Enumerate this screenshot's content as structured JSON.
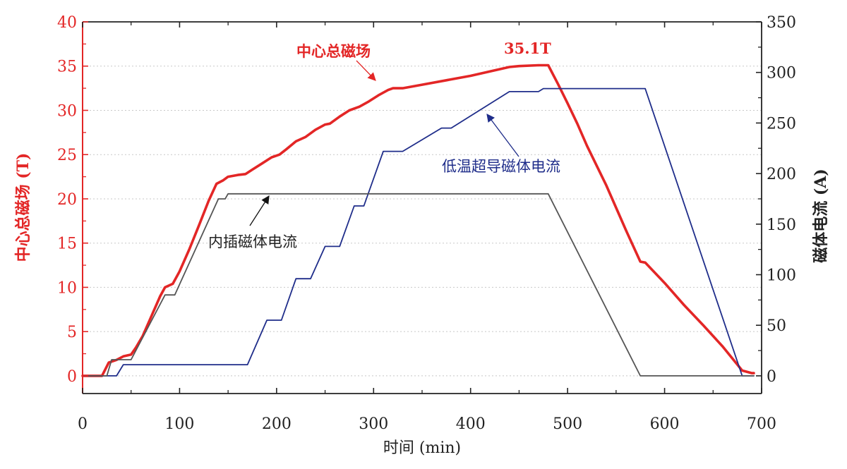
{
  "chart_data": {
    "type": "line",
    "x_axis": {
      "label": "时间 (min)",
      "range": [
        0,
        700
      ],
      "ticks": [
        0,
        100,
        200,
        300,
        400,
        500,
        600,
        700
      ]
    },
    "y_left": {
      "label": "中心总磁场 (T)",
      "range": [
        -2,
        40
      ],
      "ticks": [
        0,
        5,
        10,
        15,
        20,
        25,
        30,
        35,
        40
      ],
      "color": "#e32626"
    },
    "y_right": {
      "label": "磁体电流 (A)",
      "range": [
        -17.5,
        350
      ],
      "ticks": [
        0,
        50,
        100,
        150,
        200,
        250,
        300,
        350
      ],
      "color": "#222222"
    },
    "grid": "horizontal dotted",
    "series": [
      {
        "name": "中心总磁场",
        "axis": "left",
        "color": "#e32626",
        "points": [
          [
            0,
            0
          ],
          [
            20,
            0
          ],
          [
            27,
            1.5
          ],
          [
            35,
            1.8
          ],
          [
            42,
            2.2
          ],
          [
            50,
            2.4
          ],
          [
            55,
            3.2
          ],
          [
            62,
            4.5
          ],
          [
            70,
            6.5
          ],
          [
            80,
            9.0
          ],
          [
            85,
            10.0
          ],
          [
            93,
            10.4
          ],
          [
            100,
            11.8
          ],
          [
            110,
            14.3
          ],
          [
            120,
            17.0
          ],
          [
            130,
            19.8
          ],
          [
            138,
            21.7
          ],
          [
            145,
            22.1
          ],
          [
            150,
            22.5
          ],
          [
            160,
            22.7
          ],
          [
            168,
            22.8
          ],
          [
            175,
            23.3
          ],
          [
            185,
            24.0
          ],
          [
            195,
            24.7
          ],
          [
            203,
            25.0
          ],
          [
            210,
            25.6
          ],
          [
            220,
            26.5
          ],
          [
            230,
            27.0
          ],
          [
            240,
            27.8
          ],
          [
            250,
            28.4
          ],
          [
            255,
            28.5
          ],
          [
            265,
            29.3
          ],
          [
            275,
            30.0
          ],
          [
            285,
            30.4
          ],
          [
            295,
            31.0
          ],
          [
            305,
            31.7
          ],
          [
            315,
            32.3
          ],
          [
            320,
            32.5
          ],
          [
            330,
            32.5
          ],
          [
            350,
            32.9
          ],
          [
            375,
            33.4
          ],
          [
            400,
            33.9
          ],
          [
            420,
            34.4
          ],
          [
            440,
            34.9
          ],
          [
            450,
            35.0
          ],
          [
            470,
            35.1
          ],
          [
            480,
            35.1
          ],
          [
            490,
            33.0
          ],
          [
            500,
            30.8
          ],
          [
            510,
            28.5
          ],
          [
            520,
            26.0
          ],
          [
            540,
            21.5
          ],
          [
            560,
            16.5
          ],
          [
            575,
            12.9
          ],
          [
            580,
            12.8
          ],
          [
            600,
            10.5
          ],
          [
            620,
            8.0
          ],
          [
            640,
            5.7
          ],
          [
            660,
            3.3
          ],
          [
            680,
            0.6
          ],
          [
            690,
            0.3
          ],
          [
            692,
            0.3
          ]
        ]
      },
      {
        "name": "低温超导磁体电流",
        "axis": "right",
        "color": "#1f2d8a",
        "points": [
          [
            0,
            0
          ],
          [
            35,
            0
          ],
          [
            42,
            11
          ],
          [
            170,
            11
          ],
          [
            190,
            55
          ],
          [
            205,
            55
          ],
          [
            220,
            96
          ],
          [
            235,
            96
          ],
          [
            250,
            128
          ],
          [
            265,
            128
          ],
          [
            280,
            168
          ],
          [
            290,
            168
          ],
          [
            310,
            222
          ],
          [
            330,
            222
          ],
          [
            370,
            245
          ],
          [
            380,
            245
          ],
          [
            440,
            281
          ],
          [
            470,
            281
          ],
          [
            475,
            284
          ],
          [
            580,
            284
          ],
          [
            680,
            0
          ],
          [
            692,
            0
          ]
        ]
      },
      {
        "name": "内插磁体电流",
        "axis": "right",
        "color": "#555555",
        "points": [
          [
            0,
            0
          ],
          [
            25,
            0
          ],
          [
            30,
            16
          ],
          [
            50,
            16
          ],
          [
            85,
            80
          ],
          [
            95,
            80
          ],
          [
            140,
            175
          ],
          [
            147,
            175
          ],
          [
            150,
            180
          ],
          [
            480,
            180
          ],
          [
            575,
            0
          ],
          [
            692,
            0
          ]
        ]
      }
    ],
    "annotations": [
      {
        "text": "中心总磁场",
        "color": "#e32626",
        "bold": true,
        "arrow_to": [
          283,
          30.0
        ]
      },
      {
        "text": "35.1T",
        "color": "#e32626",
        "bold": true
      },
      {
        "text": "低温超导磁体电流",
        "color": "#1f2d8a",
        "bold": false,
        "arrow_to": [
          414,
          252
        ]
      },
      {
        "text": "内插磁体电流",
        "color": "#222222",
        "bold": false,
        "arrow_to": [
          193,
          177
        ]
      }
    ]
  }
}
